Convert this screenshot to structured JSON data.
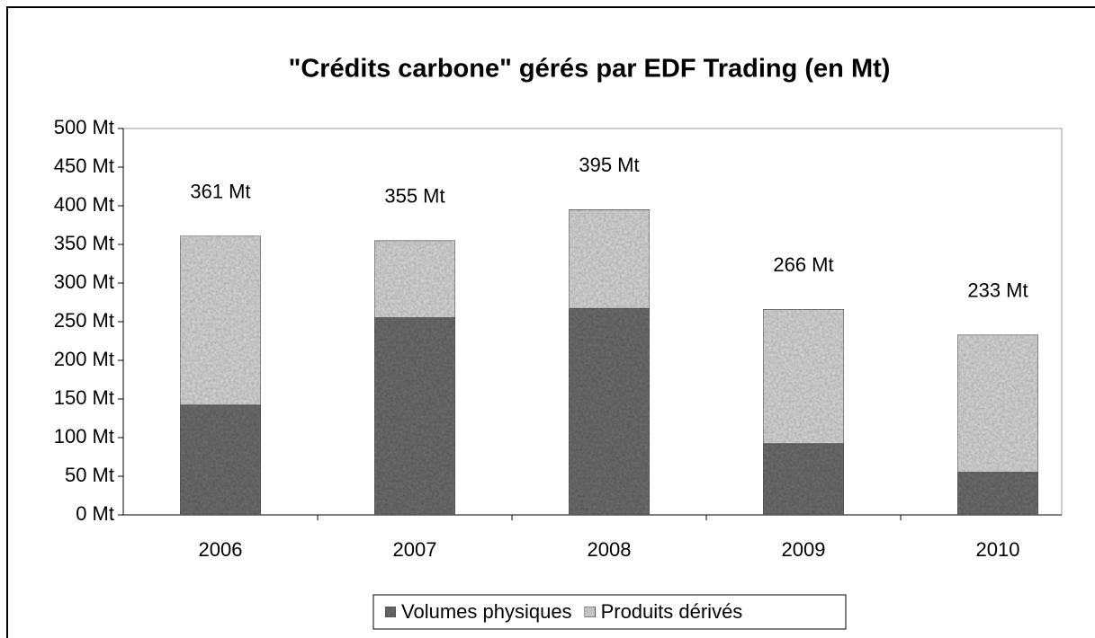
{
  "chart_data": {
    "type": "stacked_bar",
    "title": "\"Crédits carbone\" gérés par EDF Trading (en Mt)",
    "categories": [
      "2006",
      "2007",
      "2008",
      "2009",
      "2010"
    ],
    "series": [
      {
        "name": "Volumes physiques",
        "color": "#707070",
        "values": [
          142,
          255,
          267,
          92,
          55
        ]
      },
      {
        "name": "Produits dérivés",
        "color": "#dadada",
        "values": [
          219,
          100,
          128,
          174,
          178
        ]
      }
    ],
    "totals": [
      361,
      355,
      395,
      266,
      233
    ],
    "total_labels": [
      "361 Mt",
      "355 Mt",
      "395 Mt",
      "266 Mt",
      "233 Mt"
    ],
    "ylim": [
      0,
      500
    ],
    "yticks": [
      {
        "value": 0,
        "label": "0 Mt"
      },
      {
        "value": 50,
        "label": "50 Mt"
      },
      {
        "value": 100,
        "label": "100 Mt"
      },
      {
        "value": 150,
        "label": "150 Mt"
      },
      {
        "value": 200,
        "label": "200 Mt"
      },
      {
        "value": 250,
        "label": "250 Mt"
      },
      {
        "value": 300,
        "label": "300 Mt"
      },
      {
        "value": 350,
        "label": "350 Mt"
      },
      {
        "value": 400,
        "label": "400 Mt"
      },
      {
        "value": 450,
        "label": "450 Mt"
      },
      {
        "value": 500,
        "label": "500 Mt"
      }
    ],
    "legend": "bottom"
  }
}
